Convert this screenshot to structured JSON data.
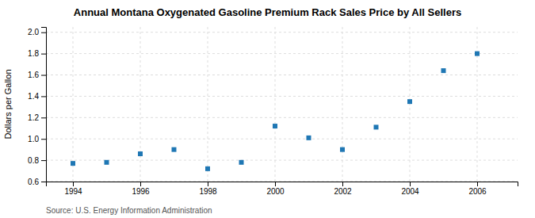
{
  "chart_data": {
    "type": "scatter",
    "title": "Annual Montana Oxygenated Gasoline Premium Rack Sales Price by All Sellers",
    "ylabel": "Dollars per Gallon",
    "annotations": [
      "Source: U.S. Energy Information Administration"
    ],
    "x": [
      1994,
      1995,
      1996,
      1997,
      1998,
      1999,
      2000,
      2001,
      2002,
      2003,
      2004,
      2005,
      2006
    ],
    "values": [
      0.77,
      0.78,
      0.86,
      0.9,
      0.72,
      0.78,
      1.12,
      1.01,
      0.9,
      1.11,
      1.35,
      1.64,
      1.8
    ],
    "xlim": [
      1993.2,
      2007.2
    ],
    "ylim": [
      0.6,
      2.05
    ],
    "xticks": [
      1994,
      1996,
      1998,
      2000,
      2002,
      2004,
      2006
    ],
    "yticks": [
      0.6,
      0.8,
      {
        "value": 1.0,
        "label": "1.0"
      },
      1.2,
      1.4,
      1.6,
      1.8,
      {
        "value": 2.0,
        "label": "2.0"
      }
    ],
    "marker": "square",
    "grid": true
  }
}
